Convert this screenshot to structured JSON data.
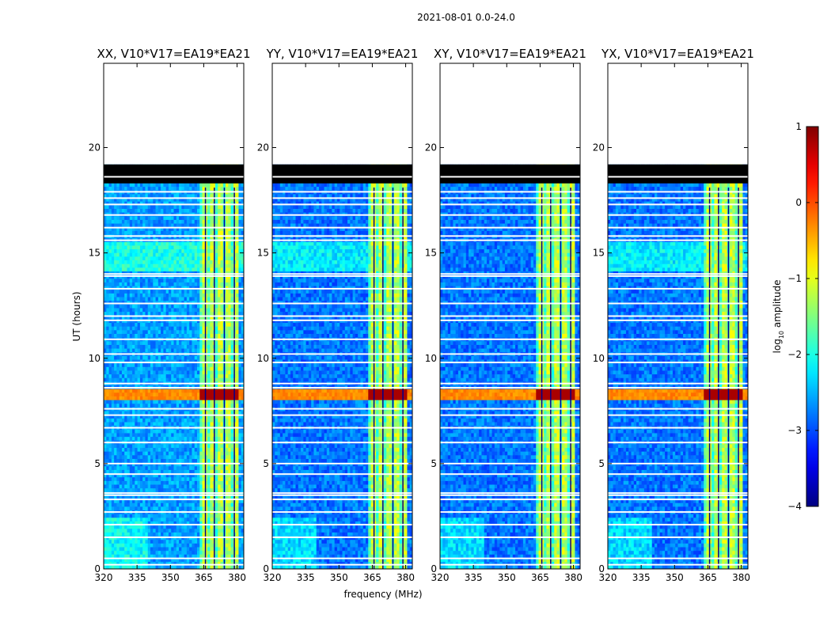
{
  "figure": {
    "suptitle": "2021-08-01 0.0-24.0"
  },
  "chart_data": {
    "type": "heatmap",
    "xlabel": "frequency (MHz)",
    "ylabel": "UT (hours)",
    "xlim": [
      320,
      383
    ],
    "ylim": [
      0,
      24
    ],
    "xticks": [
      320,
      335,
      350,
      365,
      380
    ],
    "yticks": [
      0,
      5,
      10,
      15,
      20
    ],
    "ytick_labels": [
      "0",
      "5",
      "10",
      "15",
      "20"
    ],
    "no_data_above_hours": 19.2,
    "flagged_band_hours": [
      [
        18.3,
        19.2
      ]
    ],
    "gap_rows_hours": [
      0.2,
      0.5,
      1.5,
      2.1,
      2.7,
      3.3,
      3.5,
      3.6,
      4.5,
      5.0,
      6.0,
      6.7,
      7.3,
      7.6,
      8.6,
      8.8,
      9.8,
      10.2,
      10.9,
      11.8,
      12.0,
      12.6,
      13.3,
      13.9,
      14.0,
      15.6,
      15.8,
      16.2,
      16.8,
      17.3,
      17.6,
      17.9
    ],
    "bright_band_mhz": [
      363,
      381
    ],
    "bright_event_hours": [
      8.1,
      8.6
    ],
    "colorbar": {
      "label_main": "log",
      "label_sub": "10",
      "label_tail": " amplitude",
      "range": [
        -4,
        1
      ],
      "ticks": [
        1,
        0,
        -1,
        -2,
        -3,
        -4
      ],
      "tick_labels": [
        "1",
        "0",
        "−1",
        "−2",
        "−3",
        "−4"
      ],
      "colormap": "jet"
    },
    "panels": [
      {
        "title": "XX, V10*V17=EA19*EA21",
        "base_level": -2.6
      },
      {
        "title": "YY, V10*V17=EA19*EA21",
        "base_level": -2.8
      },
      {
        "title": "XY, V10*V17=EA19*EA21",
        "base_level": -2.8
      },
      {
        "title": "YX, V10*V17=EA19*EA21",
        "base_level": -2.8
      }
    ]
  }
}
